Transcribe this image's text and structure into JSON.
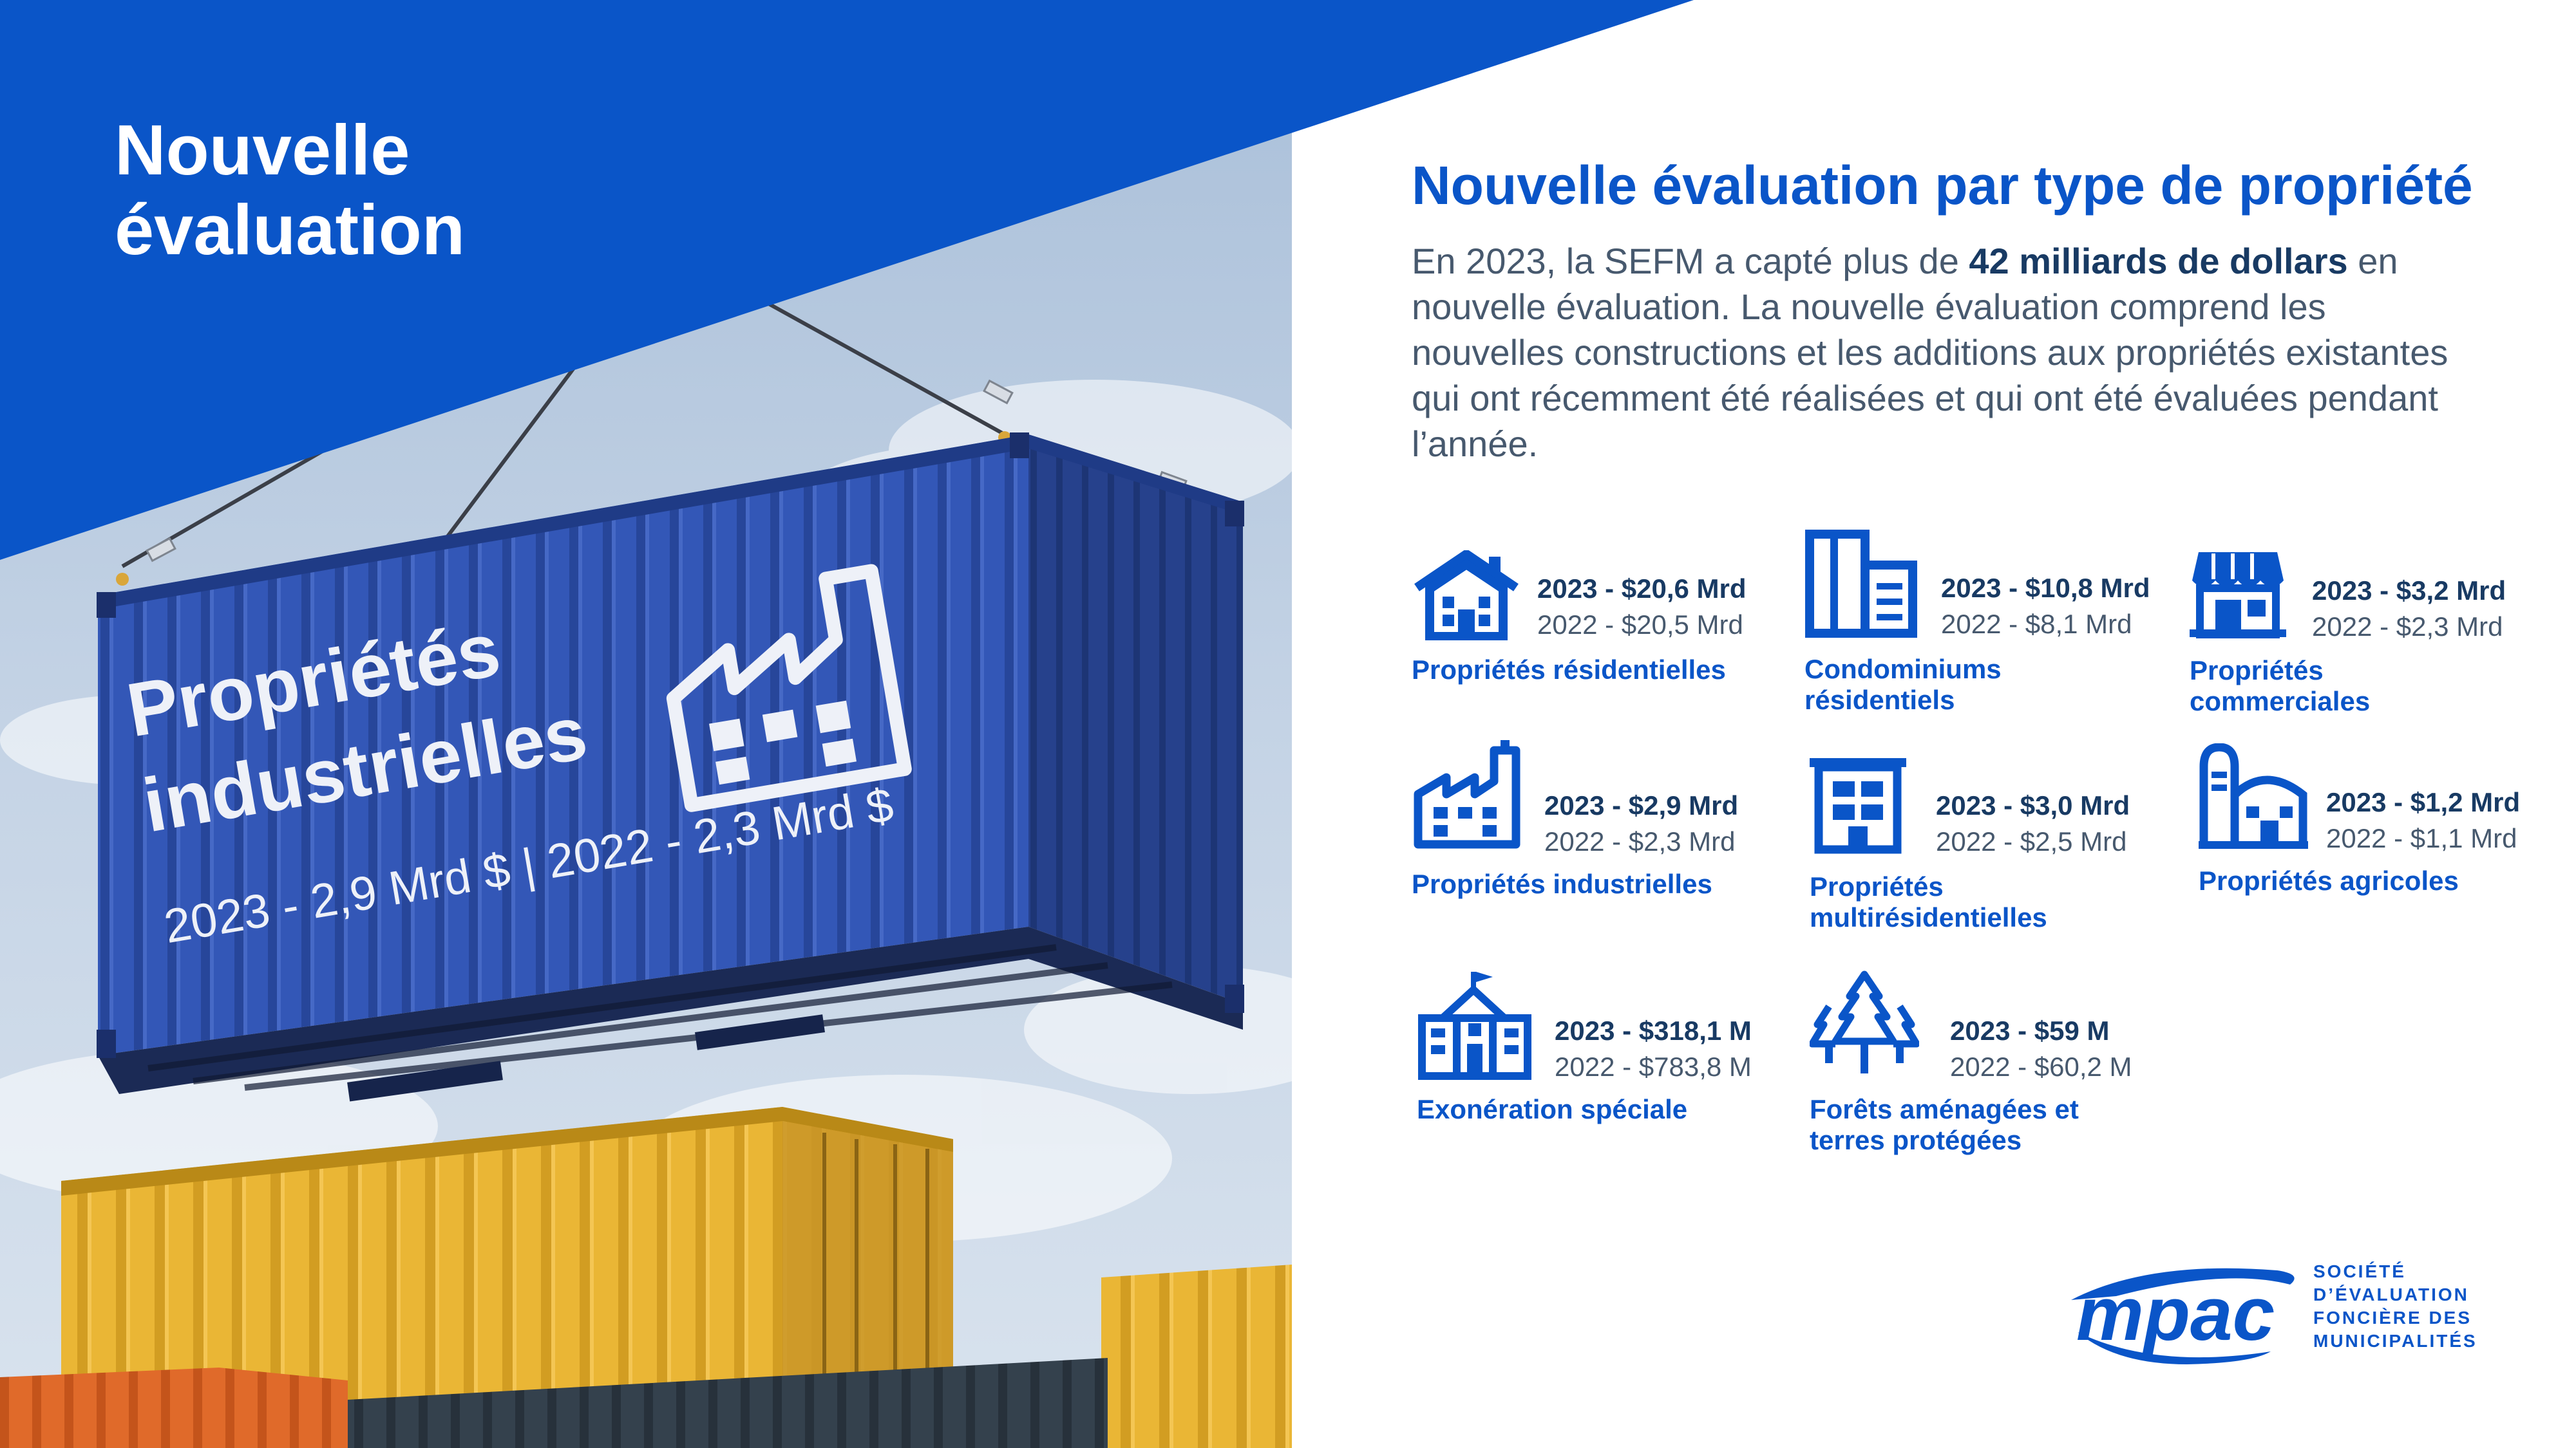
{
  "left_panel": {
    "title_lines": [
      "Nouvelle",
      "évaluation"
    ],
    "container": {
      "label_lines": [
        "Propriétés",
        "industrielles"
      ],
      "values_line": "2023 - 2,9 Mrd $ | 2022 - 2,3 Mrd $",
      "icon": "factory-icon"
    }
  },
  "main": {
    "heading": "Nouvelle évaluation par type de propriété",
    "intro": {
      "before": "En 2023, la SEFM a capté plus de ",
      "highlight": "42 milliards de dollars",
      "after": " en nouvelle évaluation. La nouvelle évaluation comprend les nouvelles constructions et les additions aux propriétés existantes qui ont récemment été réalisées et qui ont été évaluées pendant l’année."
    },
    "items": [
      {
        "icon": "house-icon",
        "value_2023": "2023 - $20,6 Mrd",
        "value_2022": "2022 - $20,5 Mrd",
        "label_lines": [
          "Propriétés résidentielles"
        ]
      },
      {
        "icon": "condominium-icon",
        "value_2023": "2023 - $10,8 Mrd",
        "value_2022": "2022 - $8,1 Mrd",
        "label_lines": [
          "Condominiums",
          "résidentiels"
        ]
      },
      {
        "icon": "storefront-icon",
        "value_2023": "2023 - $3,2 Mrd",
        "value_2022": "2022 - $2,3 Mrd",
        "label_lines": [
          "Propriétés",
          "commerciales"
        ]
      },
      {
        "icon": "factory-icon",
        "value_2023": "2023 - $2,9 Mrd",
        "value_2022": "2022 - $2,3 Mrd",
        "label_lines": [
          "Propriétés industrielles"
        ]
      },
      {
        "icon": "apartment-building-icon",
        "value_2023": "2023 - $3,0 Mrd",
        "value_2022": "2022 - $2,5 Mrd",
        "label_lines": [
          "Propriétés",
          "multirésidentielles"
        ]
      },
      {
        "icon": "barn-silo-icon",
        "value_2023": "2023 - $1,2 Mrd",
        "value_2022": "2022 - $1,1 Mrd",
        "label_lines": [
          "Propriétés agricoles"
        ]
      },
      {
        "icon": "school-building-icon",
        "value_2023": "2023 - $318,1 M",
        "value_2022": "2022 - $783,8 M",
        "label_lines": [
          "Exonération spéciale"
        ]
      },
      {
        "icon": "pine-trees-icon",
        "value_2023": "2023 - $59 M",
        "value_2022": "2022 - $60,2 M",
        "label_lines": [
          "Forêts aménagées et",
          "terres protégées"
        ]
      }
    ]
  },
  "logo": {
    "wordmark": "mpac",
    "name_lines": [
      "SOCIÉTÉ",
      "D’ÉVALUATION",
      "FONCIÈRE DES",
      "MUNICIPALITÉS"
    ]
  },
  "colors": {
    "brand_blue": "#0a55c8",
    "navy_text": "#183a63",
    "body_gray": "#47596e",
    "container_blue": "#2f56b8",
    "container_yellow": "#e9b02f"
  }
}
